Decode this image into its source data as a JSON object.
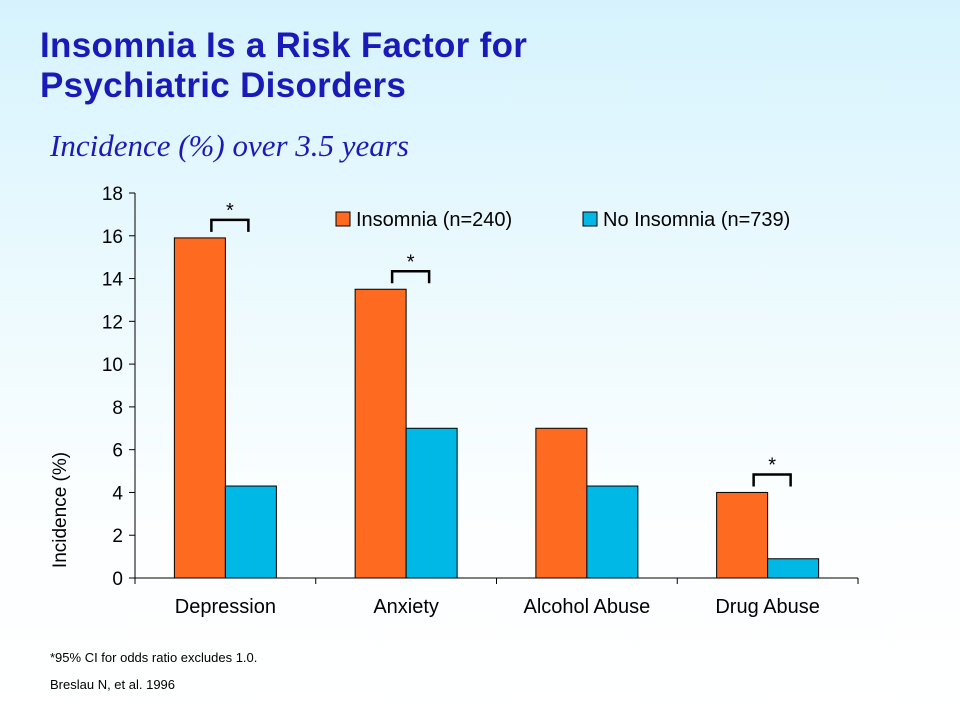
{
  "slide": {
    "title_line1": "Insomnia Is a Risk Factor for",
    "title_line2": "Psychiatric Disorders",
    "subtitle": "Incidence (%) over 3.5 years",
    "footnote": "*95% CI for odds ratio excludes  1.0.",
    "citation": "Breslau  N, et al.  1996"
  },
  "colors": {
    "insomnia": "#ff6a21",
    "no_insomnia": "#00b8e6",
    "title": "#1a1ab8"
  },
  "chart_data": {
    "type": "bar",
    "title": "",
    "xlabel": "",
    "ylabel": "Incidence (%)",
    "ylim": [
      0,
      18
    ],
    "yticks": [
      0,
      2,
      4,
      6,
      8,
      10,
      12,
      14,
      16,
      18
    ],
    "categories": [
      "Depression",
      "Anxiety",
      "Alcohol Abuse",
      "Drug Abuse"
    ],
    "series": [
      {
        "name": "Insomnia (n=240)",
        "values": [
          15.9,
          13.5,
          7.0,
          4.0
        ]
      },
      {
        "name": "No Insomnia (n=739)",
        "values": [
          4.3,
          7.0,
          4.3,
          0.9
        ]
      }
    ],
    "significance_marker": "*",
    "significant_categories": [
      "Depression",
      "Anxiety",
      "Drug Abuse"
    ],
    "legend_position": "top-right",
    "grid": false
  }
}
